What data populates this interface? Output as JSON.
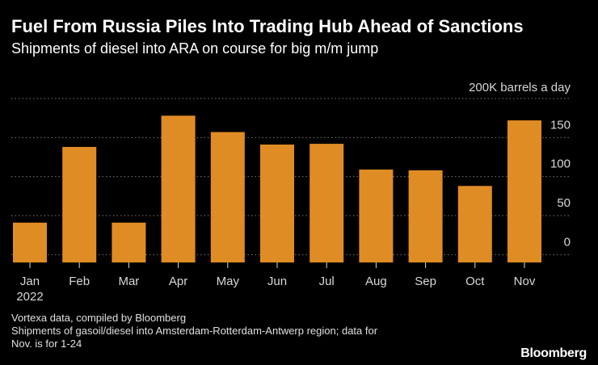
{
  "header": {
    "title": "Fuel From Russia Piles Into Trading Hub Ahead of Sanctions",
    "subtitle": "Shipments of diesel into ARA on course for big m/m jump"
  },
  "chart_data": {
    "type": "bar",
    "unit_label": "200K barrels a day",
    "categories": [
      "Jan",
      "Feb",
      "Mar",
      "Apr",
      "May",
      "Jun",
      "Jul",
      "Aug",
      "Sep",
      "Oct",
      "Nov"
    ],
    "year_label": "2022",
    "values": [
      41,
      138,
      41,
      178,
      157,
      141,
      142,
      109,
      108,
      88,
      172
    ],
    "yticks": [
      0,
      50,
      100,
      150
    ],
    "ylim": [
      -10,
      200
    ],
    "ylabel_position": "right",
    "grid": true,
    "bar_color": "#e08c24",
    "grid_color": "#7a7a7a",
    "tick_color": "#d8d8d8"
  },
  "footer": {
    "source": "Vortexa data, compiled by Bloomberg",
    "note_line1": "Shipments of gasoil/diesel into Amsterdam-Rotterdam-Antwerp region; data for",
    "note_line2": "Nov. is for 1-24"
  },
  "brand": "Bloomberg"
}
